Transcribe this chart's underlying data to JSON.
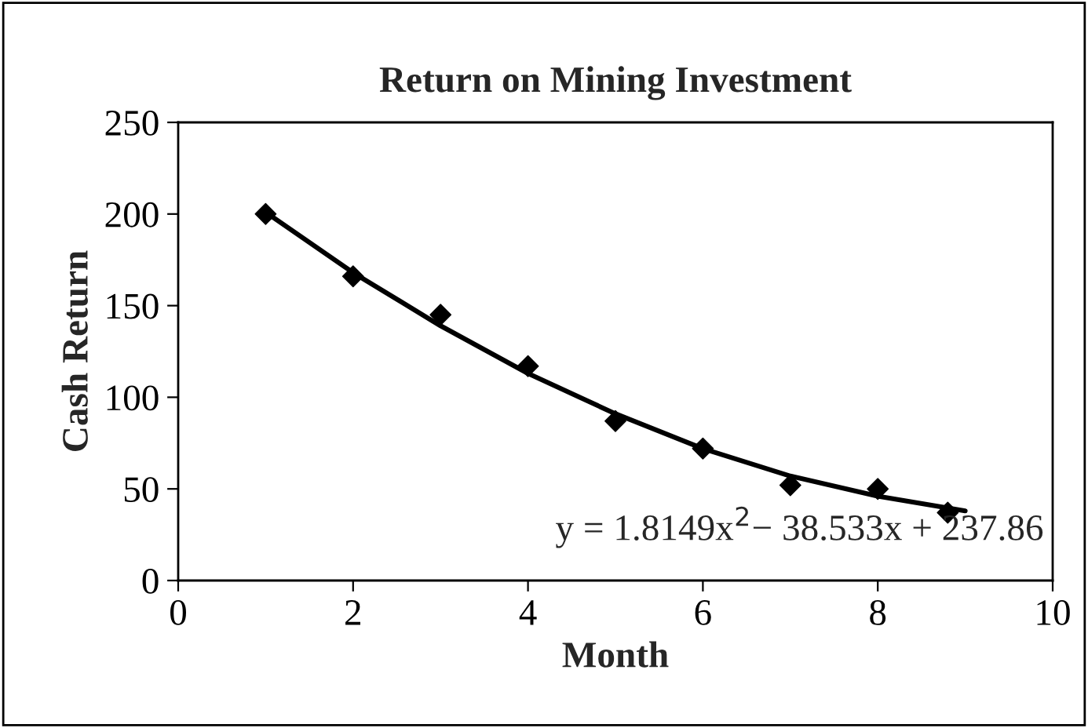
{
  "chart_data": {
    "type": "scatter",
    "title": "Return on Mining Investment",
    "xlabel": "Month",
    "ylabel": "Cash Return",
    "xlim": [
      0,
      10
    ],
    "xticks": [
      0,
      2,
      4,
      6,
      8,
      10
    ],
    "ylim": [
      0,
      250
    ],
    "yticks": [
      0,
      50,
      100,
      150,
      200,
      250
    ],
    "grid": false,
    "legend": false,
    "series": [
      {
        "color": "#000000",
        "marker": "diamond",
        "x": [
          1,
          2,
          3,
          4,
          5,
          6,
          7,
          8,
          8.8
        ],
        "values": [
          200,
          166,
          145,
          117,
          87,
          72,
          52,
          50,
          37
        ]
      },
      {
        "type": "line",
        "color": "#000000",
        "marker": "none",
        "line_style": "solid",
        "x": [
          1,
          2,
          3,
          4,
          5,
          6,
          7,
          8,
          9
        ],
        "values": [
          201,
          168,
          139,
          113,
          91,
          72,
          57,
          46,
          38
        ]
      }
    ],
    "annotations": [
      "y = 1.8149x$^{2}$− 38.533x + 237.86"
    ]
  }
}
